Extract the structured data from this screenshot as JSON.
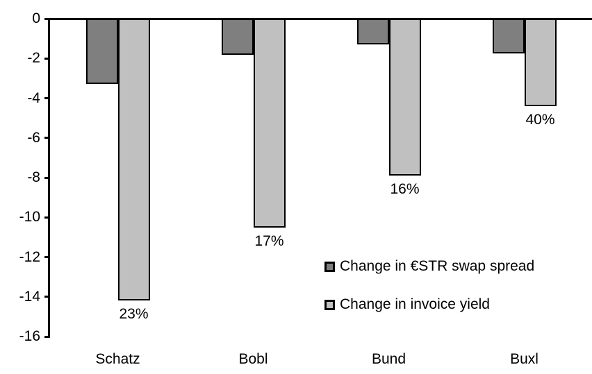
{
  "chart_data": {
    "type": "bar",
    "title": "",
    "xlabel": "",
    "ylabel": "",
    "categories": [
      "Schatz",
      "Bobl",
      "Bund",
      "Buxl"
    ],
    "series": [
      {
        "name": "Change in €STR swap spread",
        "color": "#7f7f7f",
        "values": [
          -3.3,
          -1.8,
          -1.3,
          -1.75
        ]
      },
      {
        "name": "Change in invoice yield",
        "color": "#c0c0c0",
        "values": [
          -14.2,
          -10.5,
          -7.9,
          -4.4
        ],
        "labels": [
          "23%",
          "17%",
          "16%",
          "40%"
        ]
      }
    ],
    "ylim": [
      -16,
      0
    ],
    "yticks": [
      0,
      -2,
      -4,
      -6,
      -8,
      -10,
      -12,
      -14,
      -16
    ],
    "grid": false,
    "legend_position": "inside-right",
    "bar_border_color": "#000000",
    "axis_color": "#000000",
    "background": "#ffffff"
  }
}
